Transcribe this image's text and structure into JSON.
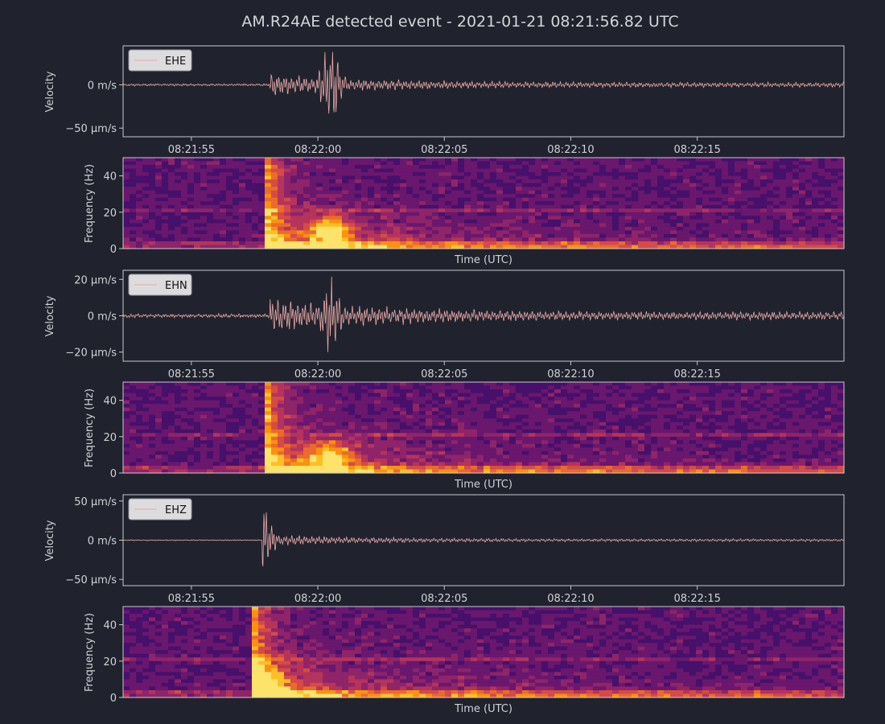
{
  "title": "AM.R24AE detected event - 2021-01-21 08:21:56.82 UTC",
  "colors": {
    "background": "#20232d",
    "trace": "#e8a8a8",
    "text": "#cfd2d6",
    "spectrogram_colormap": "inferno"
  },
  "chart_data": [
    {
      "type": "line",
      "channel": "EHE",
      "legend": "EHE",
      "ylabel": "Velocity",
      "ytick_labels": [
        "0 m/s",
        "−50 µm/s"
      ],
      "ytick_values": [
        0,
        -50
      ],
      "y_units": "µm/s",
      "ylim": [
        -60,
        45
      ],
      "xtick_labels": [
        "08:21:55",
        "08:22:00",
        "08:22:05",
        "08:22:10",
        "08:22:15"
      ],
      "x_seconds_since_window_start": [
        2.7,
        7.7,
        12.7,
        17.7,
        22.7
      ],
      "xlim_seconds": [
        0,
        28.5
      ],
      "event_onset_s": 5.8,
      "peak_time_s": 8.2,
      "peak_min": -52,
      "peak_max": 38,
      "noise_amplitude": 1.2,
      "coda_amplitude": 5
    },
    {
      "type": "heatmap",
      "channel": "EHE",
      "ylabel": "Frequency (Hz)",
      "xlabel": "Time (UTC)",
      "ytick_labels": [
        "0",
        "20",
        "40"
      ],
      "ylim": [
        0,
        50
      ],
      "energy_onset_s": 5.7,
      "notes": "broadband onset, energy concentrated 0-20 Hz around 08:21:59-08:22:01, persistent line near 21 Hz"
    },
    {
      "type": "line",
      "channel": "EHN",
      "legend": "EHN",
      "ylabel": "Velocity",
      "ytick_labels": [
        "20 µm/s",
        "0 m/s",
        "−20 µm/s"
      ],
      "ytick_values": [
        20,
        0,
        -20
      ],
      "y_units": "µm/s",
      "ylim": [
        -25,
        25
      ],
      "xtick_labels": [
        "08:21:55",
        "08:22:00",
        "08:22:05",
        "08:22:10",
        "08:22:15"
      ],
      "x_seconds_since_window_start": [
        2.7,
        7.7,
        12.7,
        17.7,
        22.7
      ],
      "xlim_seconds": [
        0,
        28.5
      ],
      "event_onset_s": 5.8,
      "peak_time_s": 8.2,
      "peak_min": -20,
      "peak_max": 22,
      "noise_amplitude": 1,
      "coda_amplitude": 4
    },
    {
      "type": "heatmap",
      "channel": "EHN",
      "ylabel": "Frequency (Hz)",
      "xlabel": "Time (UTC)",
      "ytick_labels": [
        "0",
        "20",
        "40"
      ],
      "ylim": [
        0,
        50
      ],
      "energy_onset_s": 5.7,
      "notes": "strong energy 0-20 Hz after onset, bright patch near 08:22:00, low-frequency band persists"
    },
    {
      "type": "line",
      "channel": "EHZ",
      "legend": "EHZ",
      "ylabel": "Velocity",
      "ytick_labels": [
        "50 µm/s",
        "0 m/s",
        "−50 µm/s"
      ],
      "ytick_values": [
        50,
        0,
        -50
      ],
      "y_units": "µm/s",
      "ylim": [
        -58,
        58
      ],
      "xtick_labels": [
        "08:21:55",
        "08:22:00",
        "08:22:05",
        "08:22:10",
        "08:22:15"
      ],
      "x_seconds_since_window_start": [
        2.7,
        7.7,
        12.7,
        17.7,
        22.7
      ],
      "xlim_seconds": [
        0,
        28.5
      ],
      "event_onset_s": 5.5,
      "peak_time_s": 5.5,
      "peak_min": -48,
      "peak_max": 46,
      "noise_amplitude": 0.6,
      "coda_amplitude": 3
    },
    {
      "type": "heatmap",
      "channel": "EHZ",
      "ylabel": "Frequency (Hz)",
      "xlabel": "Time (UTC)",
      "ytick_labels": [
        "0",
        "20",
        "40"
      ],
      "ylim": [
        0,
        50
      ],
      "energy_onset_s": 5.2,
      "notes": "very sharp broadband onset, bright energy 0-40 Hz at onset, decaying coda"
    }
  ]
}
